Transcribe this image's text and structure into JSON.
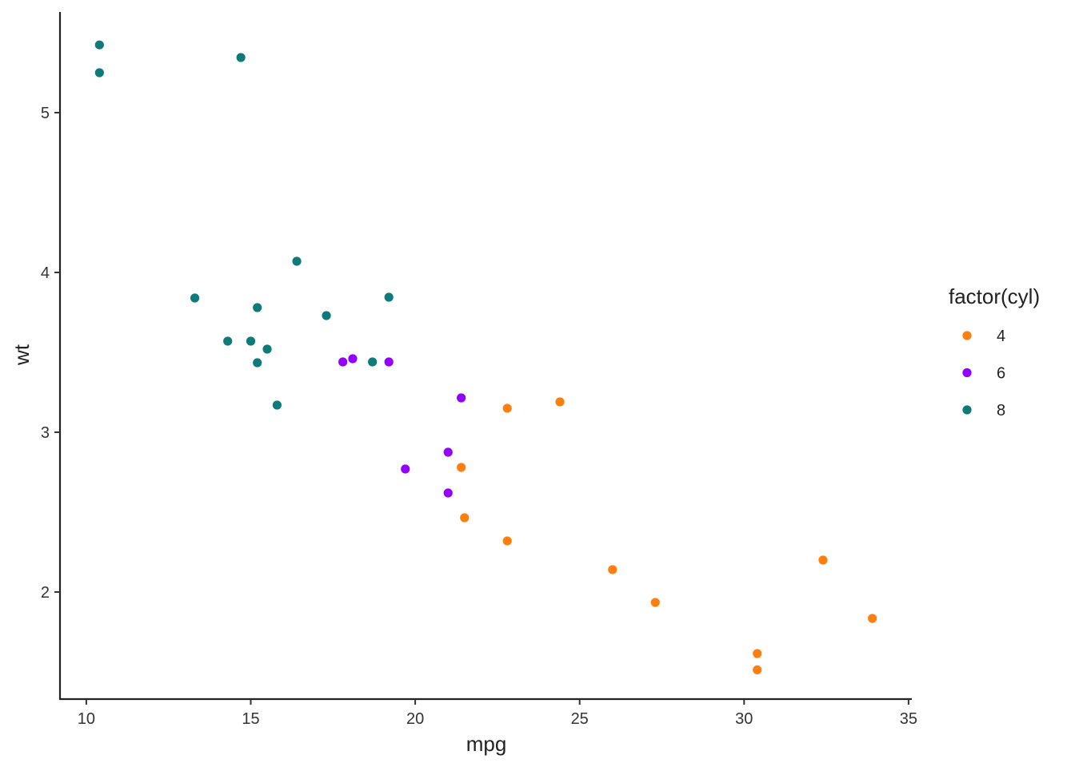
{
  "chart_data": {
    "type": "scatter",
    "xlabel": "mpg",
    "ylabel": "wt",
    "xlim": [
      9.2,
      35.1
    ],
    "ylim": [
      1.33,
      5.63
    ],
    "x_ticks": [
      10,
      15,
      20,
      25,
      30,
      35
    ],
    "x_tick_labels": [
      "10",
      "15",
      "20",
      "25",
      "30",
      "35"
    ],
    "y_ticks": [
      2,
      3,
      4,
      5
    ],
    "y_tick_labels": [
      "2",
      "3",
      "4",
      "5"
    ],
    "grid": false,
    "legend": {
      "title": "factor(cyl)",
      "placement": "right"
    },
    "series": [
      {
        "name": "4",
        "color": "#FF7F0E",
        "points": [
          [
            22.8,
            2.32
          ],
          [
            24.4,
            3.19
          ],
          [
            22.8,
            3.15
          ],
          [
            32.4,
            2.2
          ],
          [
            30.4,
            1.615
          ],
          [
            33.9,
            1.835
          ],
          [
            21.5,
            2.465
          ],
          [
            27.3,
            1.935
          ],
          [
            26.0,
            2.14
          ],
          [
            30.4,
            1.513
          ],
          [
            21.4,
            2.78
          ]
        ]
      },
      {
        "name": "6",
        "color": "#9400FF",
        "points": [
          [
            21.0,
            2.62
          ],
          [
            21.0,
            2.875
          ],
          [
            21.4,
            3.215
          ],
          [
            18.1,
            3.46
          ],
          [
            19.2,
            3.44
          ],
          [
            17.8,
            3.44
          ],
          [
            19.7,
            2.77
          ]
        ]
      },
      {
        "name": "8",
        "color": "#0F7A7A",
        "points": [
          [
            18.7,
            3.44
          ],
          [
            14.3,
            3.57
          ],
          [
            16.4,
            4.07
          ],
          [
            17.3,
            3.73
          ],
          [
            15.2,
            3.78
          ],
          [
            10.4,
            5.25
          ],
          [
            10.4,
            5.424
          ],
          [
            14.7,
            5.345
          ],
          [
            15.5,
            3.52
          ],
          [
            15.2,
            3.435
          ],
          [
            13.3,
            3.84
          ],
          [
            19.2,
            3.845
          ],
          [
            15.8,
            3.17
          ],
          [
            15.0,
            3.57
          ]
        ]
      }
    ]
  }
}
